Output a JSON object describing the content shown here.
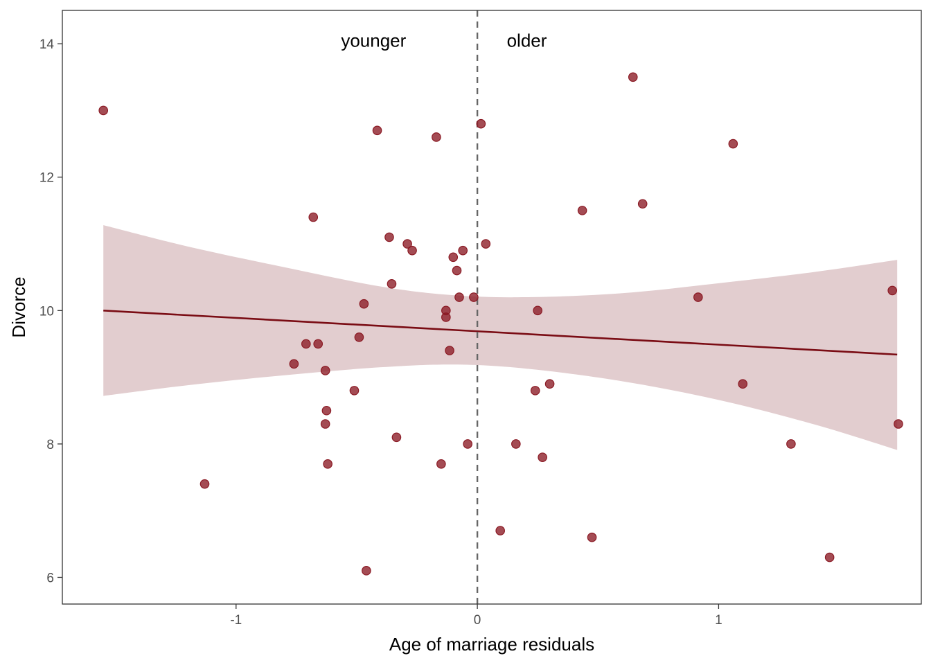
{
  "chart_data": {
    "type": "scatter",
    "title": "",
    "xlabel": "Age of marriage residuals",
    "ylabel": "Divorce",
    "xlim": [
      -1.72,
      1.84
    ],
    "ylim": [
      5.6,
      14.5
    ],
    "xticks": [
      -1,
      0,
      1
    ],
    "xtick_labels": [
      "-1",
      "0",
      "1"
    ],
    "yticks": [
      6,
      8,
      10,
      12,
      14
    ],
    "ytick_labels": [
      "6",
      "8",
      "10",
      "12",
      "14"
    ],
    "grid": false,
    "vline": {
      "x": 0,
      "style": "dashed",
      "color": "#666666"
    },
    "annotations": [
      {
        "text": "younger",
        "x": -0.43,
        "y": 14.05
      },
      {
        "text": "older",
        "x": 0.205,
        "y": 14.05
      }
    ],
    "points_color": "#8b1a24",
    "fit_color": "#7a0c14",
    "band_color": "#e2cdcf",
    "points": [
      {
        "x": -1.55,
        "y": 13.0
      },
      {
        "x": -1.13,
        "y": 7.4
      },
      {
        "x": -0.76,
        "y": 9.2
      },
      {
        "x": -0.71,
        "y": 9.5
      },
      {
        "x": -0.68,
        "y": 11.4
      },
      {
        "x": -0.66,
        "y": 9.5
      },
      {
        "x": -0.63,
        "y": 9.1
      },
      {
        "x": -0.63,
        "y": 8.3
      },
      {
        "x": -0.625,
        "y": 8.5
      },
      {
        "x": -0.62,
        "y": 7.7
      },
      {
        "x": -0.51,
        "y": 8.8
      },
      {
        "x": -0.49,
        "y": 9.6
      },
      {
        "x": -0.47,
        "y": 10.1
      },
      {
        "x": -0.46,
        "y": 6.1
      },
      {
        "x": -0.415,
        "y": 12.7
      },
      {
        "x": -0.365,
        "y": 11.1
      },
      {
        "x": -0.355,
        "y": 10.4
      },
      {
        "x": -0.335,
        "y": 8.1
      },
      {
        "x": -0.29,
        "y": 11.0
      },
      {
        "x": -0.27,
        "y": 10.9
      },
      {
        "x": -0.17,
        "y": 12.6
      },
      {
        "x": -0.15,
        "y": 7.7
      },
      {
        "x": -0.13,
        "y": 10.0
      },
      {
        "x": -0.13,
        "y": 9.9
      },
      {
        "x": -0.115,
        "y": 9.4
      },
      {
        "x": -0.1,
        "y": 10.8
      },
      {
        "x": -0.085,
        "y": 10.6
      },
      {
        "x": -0.075,
        "y": 10.2
      },
      {
        "x": -0.06,
        "y": 10.9
      },
      {
        "x": -0.04,
        "y": 8.0
      },
      {
        "x": -0.015,
        "y": 10.2
      },
      {
        "x": 0.015,
        "y": 12.8
      },
      {
        "x": 0.035,
        "y": 11.0
      },
      {
        "x": 0.095,
        "y": 6.7
      },
      {
        "x": 0.16,
        "y": 8.0
      },
      {
        "x": 0.24,
        "y": 8.8
      },
      {
        "x": 0.25,
        "y": 10.0
      },
      {
        "x": 0.27,
        "y": 7.8
      },
      {
        "x": 0.3,
        "y": 8.9
      },
      {
        "x": 0.435,
        "y": 11.5
      },
      {
        "x": 0.475,
        "y": 6.6
      },
      {
        "x": 0.645,
        "y": 13.5
      },
      {
        "x": 0.685,
        "y": 11.6
      },
      {
        "x": 0.915,
        "y": 10.2
      },
      {
        "x": 1.06,
        "y": 12.5
      },
      {
        "x": 1.1,
        "y": 8.9
      },
      {
        "x": 1.3,
        "y": 8.0
      },
      {
        "x": 1.46,
        "y": 6.3
      },
      {
        "x": 1.72,
        "y": 10.3
      },
      {
        "x": 1.745,
        "y": 8.3
      }
    ],
    "fit_line": {
      "x": [
        -1.55,
        1.74
      ],
      "y": [
        10.0,
        9.34
      ]
    },
    "confidence_band": {
      "x": [
        -1.55,
        -1.2,
        -0.8,
        -0.4,
        -0.1,
        0.2,
        0.6,
        1.0,
        1.4,
        1.74
      ],
      "lower": [
        8.72,
        8.88,
        9.03,
        9.15,
        9.19,
        9.13,
        8.94,
        8.66,
        8.29,
        7.91
      ],
      "upper": [
        11.28,
        10.96,
        10.65,
        10.36,
        10.23,
        10.2,
        10.26,
        10.41,
        10.58,
        10.76
      ]
    }
  }
}
